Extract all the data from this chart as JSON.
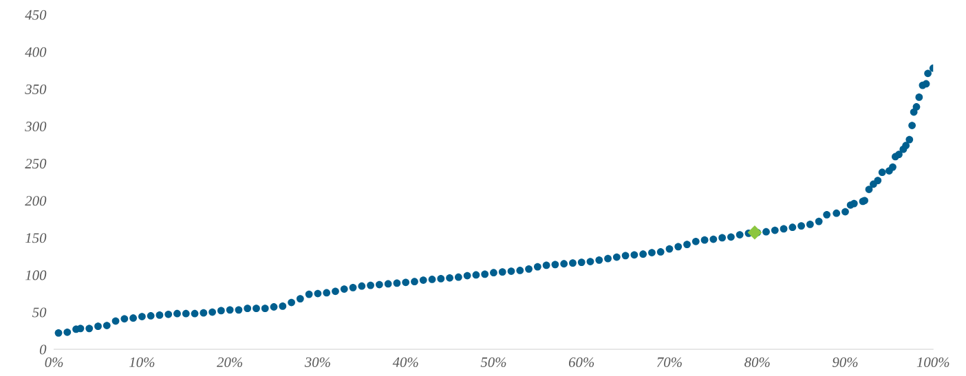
{
  "chart_data": {
    "type": "scatter",
    "xlim": [
      0,
      100
    ],
    "ylim": [
      0,
      450
    ],
    "xticks": [
      {
        "value": 0,
        "label": "0%"
      },
      {
        "value": 10,
        "label": "10%"
      },
      {
        "value": 20,
        "label": "20%"
      },
      {
        "value": 30,
        "label": "30%"
      },
      {
        "value": 40,
        "label": "40%"
      },
      {
        "value": 50,
        "label": "50%"
      },
      {
        "value": 60,
        "label": "60%"
      },
      {
        "value": 70,
        "label": "70%"
      },
      {
        "value": 80,
        "label": "80%"
      },
      {
        "value": 90,
        "label": "90%"
      },
      {
        "value": 100,
        "label": "100%"
      }
    ],
    "yticks": [
      0,
      50,
      100,
      150,
      200,
      250,
      300,
      350,
      400,
      450
    ],
    "grid": false,
    "legend": false,
    "series": [
      {
        "color": "#005f8f",
        "marker": "circle",
        "x": [
          0.5,
          1.5,
          2.5,
          3,
          4,
          5,
          6,
          7,
          8,
          9,
          10,
          11,
          12,
          13,
          14,
          15,
          16,
          17,
          18,
          19,
          20,
          21,
          22,
          23,
          24,
          25,
          26,
          27,
          28,
          29,
          30,
          31,
          32,
          33,
          34,
          35,
          36,
          37,
          38,
          39,
          40,
          41,
          42,
          43,
          44,
          45,
          46,
          47,
          48,
          49,
          50,
          51,
          52,
          53,
          54,
          55,
          56,
          57,
          58,
          59,
          60,
          61,
          62,
          63,
          64,
          65,
          66,
          67,
          68,
          69,
          70,
          71,
          72,
          73,
          74,
          75,
          76,
          77,
          78,
          79,
          80,
          81,
          82,
          83,
          84,
          85,
          86,
          87,
          87.9,
          89,
          90,
          90.6,
          91,
          92,
          92.2,
          92.7,
          93.2,
          93.7,
          94.2,
          95,
          95.4,
          95.7,
          96.1,
          96.6,
          96.9,
          97.3,
          97.6,
          97.8,
          98.1,
          98.4,
          98.8,
          99.2,
          99.4,
          100
        ],
        "values": [
          22,
          23,
          27,
          28,
          28,
          31,
          32,
          38,
          41,
          42,
          44,
          45,
          46,
          47,
          48,
          48,
          48,
          49,
          50,
          52,
          53,
          53,
          55,
          55,
          55,
          57,
          58,
          63,
          68,
          74,
          75,
          76,
          78,
          81,
          83,
          85,
          86,
          87,
          88,
          89,
          90,
          91,
          93,
          94,
          95,
          96,
          97,
          99,
          100,
          101,
          103,
          104,
          105,
          106,
          108,
          111,
          113,
          114,
          115,
          116,
          117,
          118,
          120,
          122,
          124,
          126,
          127,
          128,
          130,
          131,
          135,
          138,
          141,
          145,
          147,
          148,
          150,
          151,
          154,
          156,
          157,
          158,
          160,
          162,
          164,
          166,
          168,
          172,
          181,
          183,
          185,
          194,
          196,
          199,
          200,
          215,
          222,
          227,
          238,
          240,
          245,
          259,
          262,
          269,
          274,
          282,
          301,
          319,
          326,
          339,
          355,
          357,
          371,
          378
        ]
      },
      {
        "color": "#8cc63f",
        "marker": "diamond",
        "x": [
          79.7
        ],
        "values": [
          157
        ]
      }
    ]
  }
}
